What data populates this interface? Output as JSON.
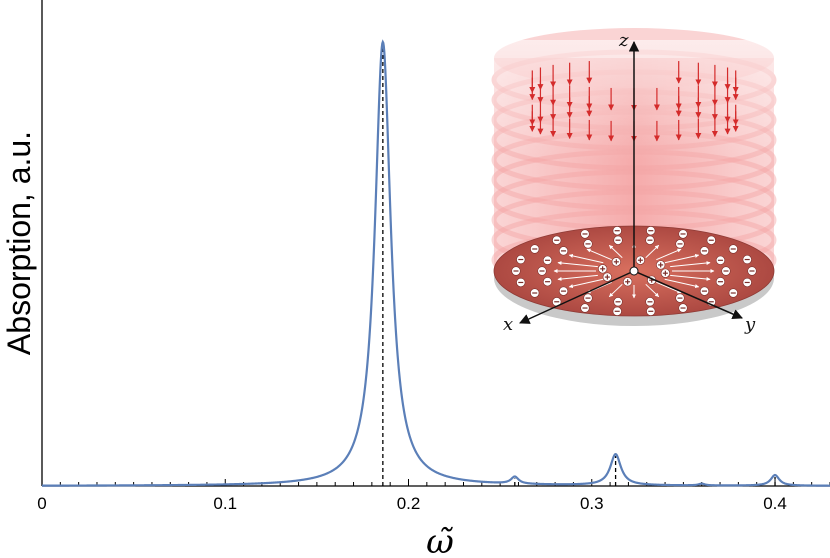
{
  "chart_data": {
    "type": "line",
    "title": "",
    "xlabel": "ω̃",
    "ylabel": "Absorption, a.u.",
    "xlim": [
      0,
      0.43
    ],
    "ylim": [
      0,
      1.0
    ],
    "x_ticks": [
      "0",
      "0.1",
      "0.2",
      "0.3",
      "0.4"
    ],
    "grid": false,
    "legend": "none",
    "line_color": "#5b7fb8",
    "peaks": [
      {
        "x": 0.186,
        "height": 1.0,
        "width": 0.0052
      },
      {
        "x": 0.258,
        "height": 0.016,
        "width": 0.0025
      },
      {
        "x": 0.313,
        "height": 0.07,
        "width": 0.0035
      },
      {
        "x": 0.36,
        "height": 0.004,
        "width": 0.002
      },
      {
        "x": 0.4,
        "height": 0.024,
        "width": 0.0028
      }
    ],
    "dashed_markers_x": [
      0.186,
      0.258,
      0.313,
      0.4
    ]
  },
  "inset": {
    "axis_labels": {
      "x": "x",
      "y": "y",
      "z": "z"
    },
    "minus_sign": "⊖",
    "plus_sign": "⊕",
    "colors": {
      "field": "#e03c3c",
      "disk": "#b5514a",
      "glow": "#f08a8a"
    }
  }
}
